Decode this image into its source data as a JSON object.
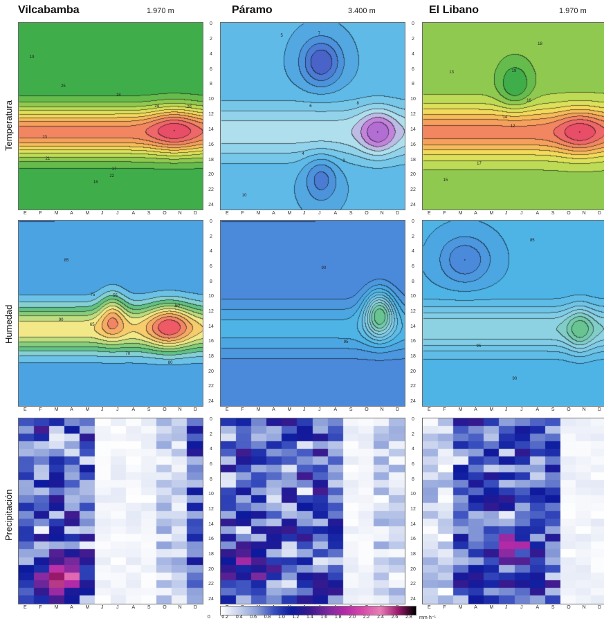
{
  "stations": [
    {
      "name": "Vilcabamba",
      "altitude": "1.970 m"
    },
    {
      "name": "Páramo",
      "altitude": "3.400 m"
    },
    {
      "name": "El Libano",
      "altitude": "1.970 m"
    }
  ],
  "rows": [
    {
      "label": "Temperatura",
      "kind": "temperature"
    },
    {
      "label": "Humedad",
      "kind": "humidity"
    },
    {
      "label": "Precipitación",
      "kind": "precipitation"
    }
  ],
  "months": [
    "E",
    "F",
    "M",
    "A",
    "M",
    "J",
    "J",
    "A",
    "S",
    "O",
    "N",
    "D"
  ],
  "hours": [
    "0",
    "2",
    "4",
    "6",
    "8",
    "10",
    "12",
    "14",
    "16",
    "18",
    "20",
    "22",
    "24"
  ],
  "colorbar": {
    "ticks": [
      "0",
      "0.2",
      "0.4",
      "0.6",
      "0.8",
      "1.0",
      "1.2",
      "1.4",
      "1.6",
      "1.8",
      "2.0",
      "2.2",
      "2.4",
      "2.6",
      "2.8"
    ],
    "unit": "mm·h⁻¹",
    "colors": [
      "#ffffff",
      "#c9d3ee",
      "#8ea1da",
      "#3a4fbf",
      "#0d1a9e",
      "#3a1a8e",
      "#7a2a9e",
      "#b42aa8",
      "#d84aa8",
      "#e880b8",
      "#a01a70",
      "#000000"
    ]
  },
  "chart_data": [
    {
      "type": "heatmap",
      "station": "Vilcabamba",
      "variable": "Temperatura",
      "x_categories": [
        "E",
        "F",
        "M",
        "A",
        "M",
        "J",
        "J",
        "A",
        "S",
        "O",
        "N",
        "D"
      ],
      "y_range": [
        0,
        24
      ],
      "contour_labels": [
        "16",
        "17",
        "18",
        "19",
        "20",
        "21",
        "22",
        "23",
        "24",
        "25"
      ],
      "pattern": {
        "base": 16.5,
        "amp_diurnal": 8,
        "peak_hour": 14,
        "width": 3.2,
        "seasonal": [
          {
            "month": 10.3,
            "hour": 13.5,
            "amp": 2.5,
            "w": 1.4
          }
        ]
      }
    },
    {
      "type": "heatmap",
      "station": "Páramo",
      "variable": "Temperatura",
      "x_categories": [
        "E",
        "F",
        "M",
        "A",
        "M",
        "J",
        "J",
        "A",
        "S",
        "O",
        "N",
        "D"
      ],
      "y_range": [
        0,
        24
      ],
      "contour_labels": [
        "4",
        "5",
        "6",
        "7",
        "8",
        "9",
        "10"
      ],
      "pattern": {
        "base": 6,
        "amp_diurnal": 2.5,
        "peak_hour": 14,
        "width": 3.5,
        "seasonal": [
          {
            "month": 10.4,
            "hour": 14,
            "amp": 2.5,
            "w": 1.1
          },
          {
            "month": 7,
            "hour": 5,
            "amp": -3,
            "w": 1.2
          },
          {
            "month": 7,
            "hour": 20,
            "amp": -2,
            "w": 1.0
          }
        ]
      }
    },
    {
      "type": "heatmap",
      "station": "El Libano",
      "variable": "Temperatura",
      "x_categories": [
        "E",
        "F",
        "M",
        "A",
        "M",
        "J",
        "J",
        "A",
        "S",
        "O",
        "N",
        "D"
      ],
      "y_range": [
        0,
        24
      ],
      "contour_labels": [
        "12",
        "13",
        "14",
        "15",
        "16",
        "17",
        "18",
        "19"
      ],
      "pattern": {
        "base": 14,
        "amp_diurnal": 3.5,
        "peak_hour": 14,
        "width": 3.2,
        "seasonal": [
          {
            "month": 10.4,
            "hour": 14,
            "amp": 1.5,
            "w": 1.3
          },
          {
            "month": 6.5,
            "hour": 8,
            "amp": -1.5,
            "w": 1.0
          }
        ]
      }
    },
    {
      "type": "heatmap",
      "station": "Vilcabamba",
      "variable": "Humedad",
      "x_categories": [
        "E",
        "F",
        "M",
        "A",
        "M",
        "J",
        "J",
        "A",
        "S",
        "O",
        "N",
        "D"
      ],
      "y_range": [
        0,
        24
      ],
      "contour_labels": [
        "55",
        "60",
        "65",
        "70",
        "75",
        "80",
        "85",
        "90"
      ],
      "pattern": {
        "base": 78,
        "amp_diurnal": -18,
        "peak_hour": 14,
        "width": 3.2,
        "seasonal": [
          {
            "month": 10,
            "hour": 13.5,
            "amp": -12,
            "w": 1.3
          },
          {
            "month": 6.6,
            "hour": 12,
            "amp": -10,
            "w": 0.8
          }
        ]
      }
    },
    {
      "type": "heatmap",
      "station": "Páramo",
      "variable": "Humedad",
      "x_categories": [
        "E",
        "F",
        "M",
        "A",
        "M",
        "J",
        "J",
        "A",
        "S",
        "O",
        "N",
        "D"
      ],
      "y_range": [
        0,
        24
      ],
      "contour_labels": [
        "90",
        "95"
      ],
      "pattern": {
        "base": 96,
        "amp_diurnal": -2,
        "peak_hour": 14,
        "width": 3.5,
        "seasonal": [
          {
            "month": 10.5,
            "hour": 12,
            "amp": -5,
            "w": 0.9
          }
        ]
      }
    },
    {
      "type": "heatmap",
      "station": "El Libano",
      "variable": "Humedad",
      "x_categories": [
        "E",
        "F",
        "M",
        "A",
        "M",
        "J",
        "J",
        "A",
        "S",
        "O",
        "N",
        "D"
      ],
      "y_range": [
        0,
        24
      ],
      "contour_labels": [
        "85",
        "90",
        "95"
      ],
      "pattern": {
        "base": 93,
        "amp_diurnal": -6,
        "peak_hour": 14,
        "width": 3.0,
        "seasonal": [
          {
            "month": 10.4,
            "hour": 14,
            "amp": -4,
            "w": 0.8
          },
          {
            "month": 3.5,
            "hour": 5,
            "amp": 4,
            "w": 1.5
          }
        ]
      }
    },
    {
      "type": "heatmap",
      "station": "Vilcabamba",
      "variable": "Precipitación",
      "x_categories": [
        "E",
        "F",
        "M",
        "A",
        "M",
        "J",
        "J",
        "A",
        "S",
        "O",
        "N",
        "D"
      ],
      "y_range": [
        0,
        24
      ],
      "units": "mm·h⁻¹",
      "pattern": {
        "wet_months": [
          1,
          2,
          3,
          4,
          5,
          12
        ],
        "dry_months": [
          6,
          7,
          8,
          9
        ],
        "storm_hour": 20,
        "storm_month": 3,
        "storm_amp": 2.6,
        "seed": 7
      }
    },
    {
      "type": "heatmap",
      "station": "Páramo",
      "variable": "Precipitación",
      "x_categories": [
        "E",
        "F",
        "M",
        "A",
        "M",
        "J",
        "J",
        "A",
        "S",
        "O",
        "N",
        "D"
      ],
      "y_range": [
        0,
        24
      ],
      "units": "mm·h⁻¹",
      "pattern": {
        "wet_months": [
          1,
          2,
          3,
          4,
          5,
          6,
          7,
          8
        ],
        "dry_months": [
          9,
          10
        ],
        "storm_hour": 18,
        "storm_month": 2,
        "storm_amp": 1.2,
        "seed": 13
      }
    },
    {
      "type": "heatmap",
      "station": "El Libano",
      "variable": "Precipitación",
      "x_categories": [
        "E",
        "F",
        "M",
        "A",
        "M",
        "J",
        "J",
        "A",
        "S",
        "O",
        "N",
        "D"
      ],
      "y_range": [
        0,
        24
      ],
      "units": "mm·h⁻¹",
      "pattern": {
        "wet_months": [
          3,
          4,
          5,
          6,
          7,
          8,
          9
        ],
        "dry_months": [
          10,
          11,
          12
        ],
        "storm_hour": 16,
        "storm_month": 6,
        "storm_amp": 1.0,
        "seed": 21
      }
    }
  ]
}
